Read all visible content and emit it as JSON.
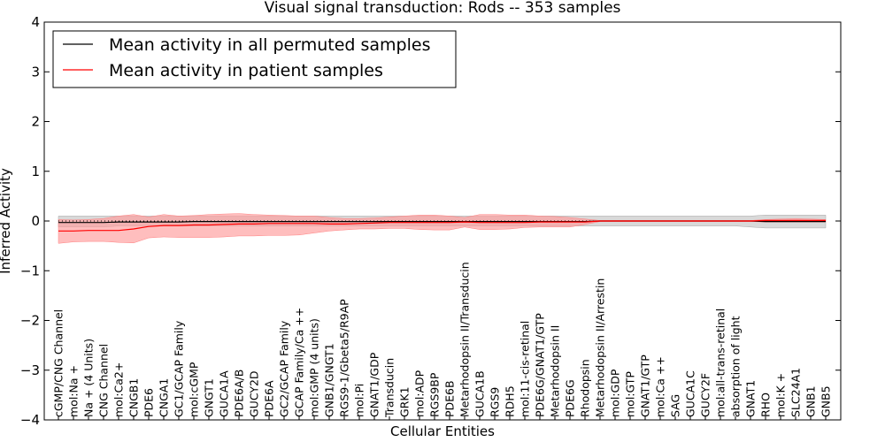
{
  "chart_data": {
    "type": "line",
    "title": "Visual signal transduction: Rods -- 353 samples",
    "xlabel": "Cellular Entities",
    "ylabel": "Inferred Activity",
    "ylim": [
      -4,
      4
    ],
    "yticks": [
      -4,
      -3,
      -2,
      -1,
      0,
      1,
      2,
      3,
      4
    ],
    "ytick_labels": [
      "−4",
      "−3",
      "−2",
      "−1",
      "0",
      "1",
      "2",
      "3",
      "4"
    ],
    "grid": false,
    "legend_position": "upper-left",
    "categories": [
      "cGMP/CNG Channel",
      "mol:Na +",
      "Na + (4 Units)",
      "CNG Channel",
      "mol:Ca2+",
      "CNGB1",
      "PDE6",
      "CNGA1",
      "GC1/GCAP Family",
      "mol:cGMP",
      "GNGT1",
      "GUCA1A",
      "PDE6A/B",
      "GUCY2D",
      "PDE6A",
      "GC2/GCAP Family",
      "GCAP Family/Ca ++",
      "mol:GMP (4 units)",
      "GNB1/GNGT1",
      "RGS9-1/Gbeta5/R9AP",
      "mol:Pi",
      "GNAT1/GDP",
      "Transducin",
      "GRK1",
      "mol:ADP",
      "RGS9BP",
      "PDE6B",
      "Metarhodopsin II/Transducin",
      "GUCA1B",
      "RGS9",
      "RDH5",
      "mol:11-cis-retinal",
      "PDE6G/GNAT1/GTP",
      "Metarhodopsin II",
      "PDE6G",
      "Rhodopsin",
      "Metarhodopsin II/Arrestin",
      "mol:GDP",
      "mol:GTP",
      "GNAT1/GTP",
      "mol:Ca ++",
      "SAG",
      "GUCA1C",
      "GUCY2F",
      "mol:all-trans-retinal",
      "absorption of light",
      "GNAT1",
      "RHO",
      "mol:K +",
      "SLC24A1",
      "GNB1",
      "GNB5"
    ],
    "series": [
      {
        "name": "Mean activity in all permuted samples",
        "color": "#000000",
        "band_color": "#c0c0c0",
        "values": [
          -0.03,
          -0.03,
          -0.03,
          -0.03,
          -0.02,
          -0.02,
          -0.02,
          -0.02,
          -0.02,
          -0.01,
          -0.01,
          -0.01,
          -0.01,
          -0.01,
          -0.01,
          -0.01,
          -0.01,
          -0.01,
          -0.01,
          -0.01,
          -0.01,
          -0.01,
          -0.01,
          -0.01,
          -0.01,
          -0.01,
          -0.01,
          -0.01,
          -0.01,
          -0.01,
          -0.01,
          -0.01,
          -0.01,
          -0.01,
          -0.01,
          -0.01,
          0,
          0,
          0,
          0,
          0,
          0,
          0,
          0,
          0,
          0,
          0,
          -0.01,
          -0.01,
          -0.01,
          -0.01,
          -0.01
        ],
        "lower": [
          -0.12,
          -0.12,
          -0.12,
          -0.12,
          -0.1,
          -0.1,
          -0.1,
          -0.1,
          -0.1,
          -0.1,
          -0.1,
          -0.1,
          -0.1,
          -0.1,
          -0.1,
          -0.1,
          -0.1,
          -0.1,
          -0.1,
          -0.1,
          -0.1,
          -0.1,
          -0.1,
          -0.1,
          -0.1,
          -0.1,
          -0.1,
          -0.1,
          -0.1,
          -0.1,
          -0.1,
          -0.1,
          -0.1,
          -0.1,
          -0.1,
          -0.1,
          -0.1,
          -0.1,
          -0.1,
          -0.1,
          -0.1,
          -0.1,
          -0.1,
          -0.1,
          -0.1,
          -0.1,
          -0.12,
          -0.14,
          -0.14,
          -0.14,
          -0.14,
          -0.14
        ],
        "upper": [
          0.1,
          0.1,
          0.1,
          0.1,
          0.1,
          0.1,
          0.1,
          0.1,
          0.1,
          0.1,
          0.1,
          0.1,
          0.1,
          0.1,
          0.1,
          0.1,
          0.1,
          0.1,
          0.1,
          0.1,
          0.1,
          0.1,
          0.1,
          0.1,
          0.1,
          0.1,
          0.1,
          0.1,
          0.1,
          0.1,
          0.1,
          0.1,
          0.1,
          0.1,
          0.1,
          0.1,
          0.1,
          0.1,
          0.1,
          0.1,
          0.1,
          0.1,
          0.1,
          0.1,
          0.1,
          0.1,
          0.1,
          0.12,
          0.12,
          0.12,
          0.12,
          0.12
        ]
      },
      {
        "name": "Mean activity in patient samples",
        "color": "#ff0000",
        "band_color": "#ff9b9b",
        "values": [
          -0.2,
          -0.2,
          -0.19,
          -0.19,
          -0.19,
          -0.16,
          -0.11,
          -0.09,
          -0.09,
          -0.08,
          -0.08,
          -0.07,
          -0.06,
          -0.06,
          -0.05,
          -0.05,
          -0.05,
          -0.05,
          -0.06,
          -0.06,
          -0.05,
          -0.04,
          -0.03,
          -0.03,
          -0.03,
          -0.03,
          -0.03,
          -0.02,
          -0.03,
          -0.03,
          -0.03,
          -0.03,
          -0.02,
          -0.02,
          -0.02,
          -0.02,
          0,
          0,
          0,
          0,
          0,
          0,
          0,
          0,
          0,
          0,
          0,
          0.01,
          0.01,
          0.01,
          0.01,
          0.01
        ],
        "lower": [
          -0.45,
          -0.42,
          -0.41,
          -0.41,
          -0.43,
          -0.44,
          -0.34,
          -0.32,
          -0.33,
          -0.33,
          -0.33,
          -0.32,
          -0.3,
          -0.3,
          -0.29,
          -0.29,
          -0.28,
          -0.24,
          -0.2,
          -0.18,
          -0.16,
          -0.16,
          -0.15,
          -0.15,
          -0.17,
          -0.18,
          -0.18,
          -0.12,
          -0.17,
          -0.17,
          -0.16,
          -0.13,
          -0.12,
          -0.12,
          -0.12,
          -0.07,
          -0.01,
          -0.01,
          -0.01,
          -0.01,
          -0.01,
          -0.01,
          -0.01,
          -0.01,
          -0.01,
          -0.01,
          -0.01,
          -0.02,
          -0.02,
          -0.02,
          -0.02,
          -0.02
        ],
        "upper": [
          0.03,
          0.02,
          0.03,
          0.05,
          0.1,
          0.13,
          0.08,
          0.13,
          0.1,
          0.11,
          0.13,
          0.14,
          0.15,
          0.13,
          0.12,
          0.11,
          0.1,
          0.1,
          0.07,
          0.05,
          0.05,
          0.06,
          0.08,
          0.1,
          0.12,
          0.12,
          0.1,
          0.07,
          0.13,
          0.13,
          0.12,
          0.12,
          0.1,
          0.09,
          0.07,
          0.04,
          0.01,
          0.01,
          0.01,
          0.01,
          0.01,
          0.01,
          0.01,
          0.01,
          0.01,
          0.01,
          0.01,
          0.03,
          0.04,
          0.05,
          0.04,
          0.03
        ]
      }
    ],
    "baseline": {
      "value": 0,
      "style": "dotted"
    }
  }
}
